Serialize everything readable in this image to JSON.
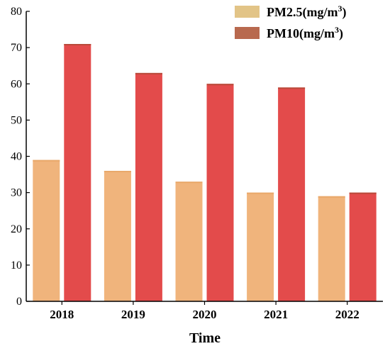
{
  "chart_data": {
    "type": "bar",
    "categories": [
      "2018",
      "2019",
      "2020",
      "2021",
      "2022"
    ],
    "series": [
      {
        "name": "PM2.5(mg/m3)",
        "name_base": "PM2.5(mg/m",
        "name_sup": "3",
        "name_tail": ")",
        "values": [
          39,
          36,
          33,
          30,
          29
        ],
        "color": "#f0b47c"
      },
      {
        "name": "PM10(mg/m3)",
        "name_base": "PM10(mg/m",
        "name_sup": "3",
        "name_tail": ")",
        "values": [
          71,
          63,
          60,
          59,
          30
        ],
        "color": "#e34b4b"
      }
    ],
    "legend_colors": [
      "#e2c487",
      "#b8694e"
    ],
    "title": "",
    "xlabel": "Time",
    "ylabel": "",
    "ylim": [
      0,
      80
    ],
    "yticks": [
      0,
      10,
      20,
      30,
      40,
      50,
      60,
      70,
      80
    ],
    "grid": false,
    "legend_position": "top-right"
  }
}
